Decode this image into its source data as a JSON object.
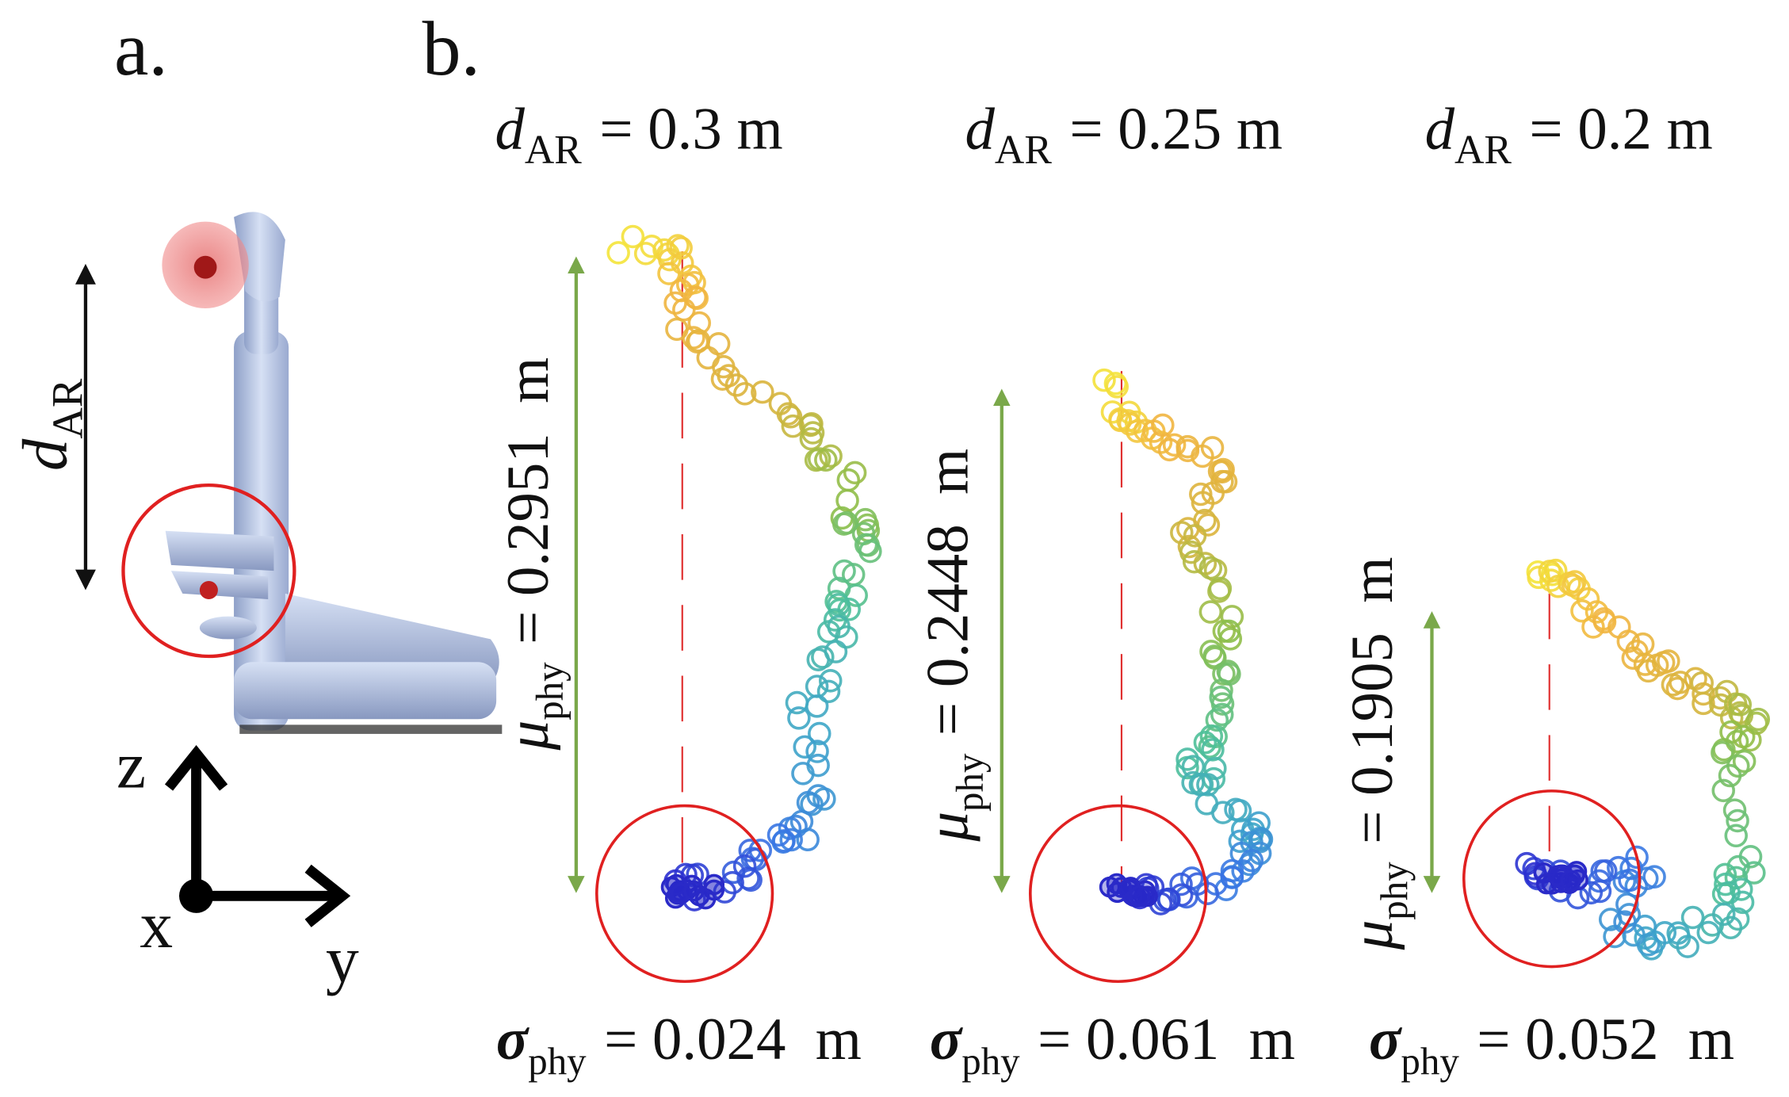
{
  "panel_labels": {
    "a": "a.",
    "b": "b."
  },
  "arm_figure": {
    "distance_label": {
      "symbol": "d",
      "subscript": "AR"
    },
    "axes": {
      "z": "z",
      "x": "x",
      "y": "y"
    }
  },
  "panels": [
    {
      "title": {
        "symbol": "d",
        "subscript": "AR",
        "text": "= 0.3 m"
      },
      "mean": {
        "symbol": "μ",
        "subscript": "phy",
        "text": "= 0.2951  m"
      },
      "std": {
        "symbol": "σ",
        "subscript": "phy",
        "text": "= 0.024  m"
      }
    },
    {
      "title": {
        "symbol": "d",
        "subscript": "AR",
        "text": "= 0.25 m"
      },
      "mean": {
        "symbol": "μ",
        "subscript": "phy",
        "text": "= 0.2448  m"
      },
      "std": {
        "symbol": "σ",
        "subscript": "phy",
        "text": "= 0.061  m"
      }
    },
    {
      "title": {
        "symbol": "d",
        "subscript": "AR",
        "text": "= 0.2 m"
      },
      "mean": {
        "symbol": "μ",
        "subscript": "phy",
        "text": "= 0.1905  m"
      },
      "std": {
        "symbol": "σ",
        "subscript": "phy",
        "text": "= 0.052  m"
      }
    }
  ]
}
